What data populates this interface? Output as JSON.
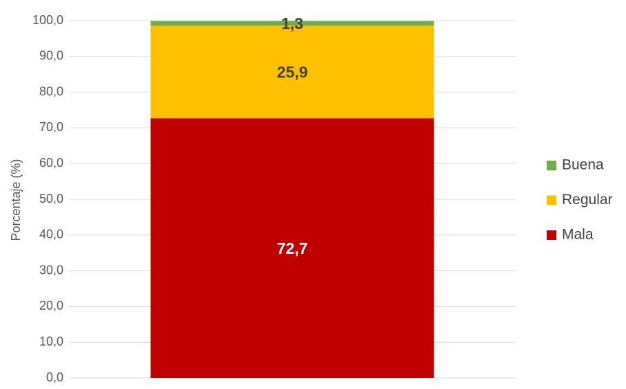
{
  "chart_data": {
    "type": "stacked_bar",
    "y_label": "Porcentaje (%)",
    "categories": [
      null
    ],
    "series": [
      {
        "name": "Mala",
        "color": "#c00000",
        "label_color": "#ffffff",
        "values": [
          72.7
        ],
        "value_labels": [
          "72,7"
        ]
      },
      {
        "name": "Regular",
        "color": "#ffc000",
        "label_color": "#404040",
        "values": [
          25.9
        ],
        "value_labels": [
          "25,9"
        ]
      },
      {
        "name": "Buena",
        "color": "#70ad47",
        "label_color": "#404040",
        "values": [
          1.3
        ],
        "value_labels": [
          "1,3"
        ]
      }
    ],
    "ylim": [
      0,
      100
    ],
    "yticks": [
      {
        "value": 0,
        "label": "0,0"
      },
      {
        "value": 10,
        "label": "10,0"
      },
      {
        "value": 20,
        "label": "20,0"
      },
      {
        "value": 30,
        "label": "30,0"
      },
      {
        "value": 40,
        "label": "40,0"
      },
      {
        "value": 50,
        "label": "50,0"
      },
      {
        "value": 60,
        "label": "60,0"
      },
      {
        "value": 70,
        "label": "70,0"
      },
      {
        "value": 80,
        "label": "80,0"
      },
      {
        "value": 90,
        "label": "90,0"
      },
      {
        "value": 100,
        "label": "100,0"
      }
    ],
    "grid": true,
    "legend": "right"
  }
}
